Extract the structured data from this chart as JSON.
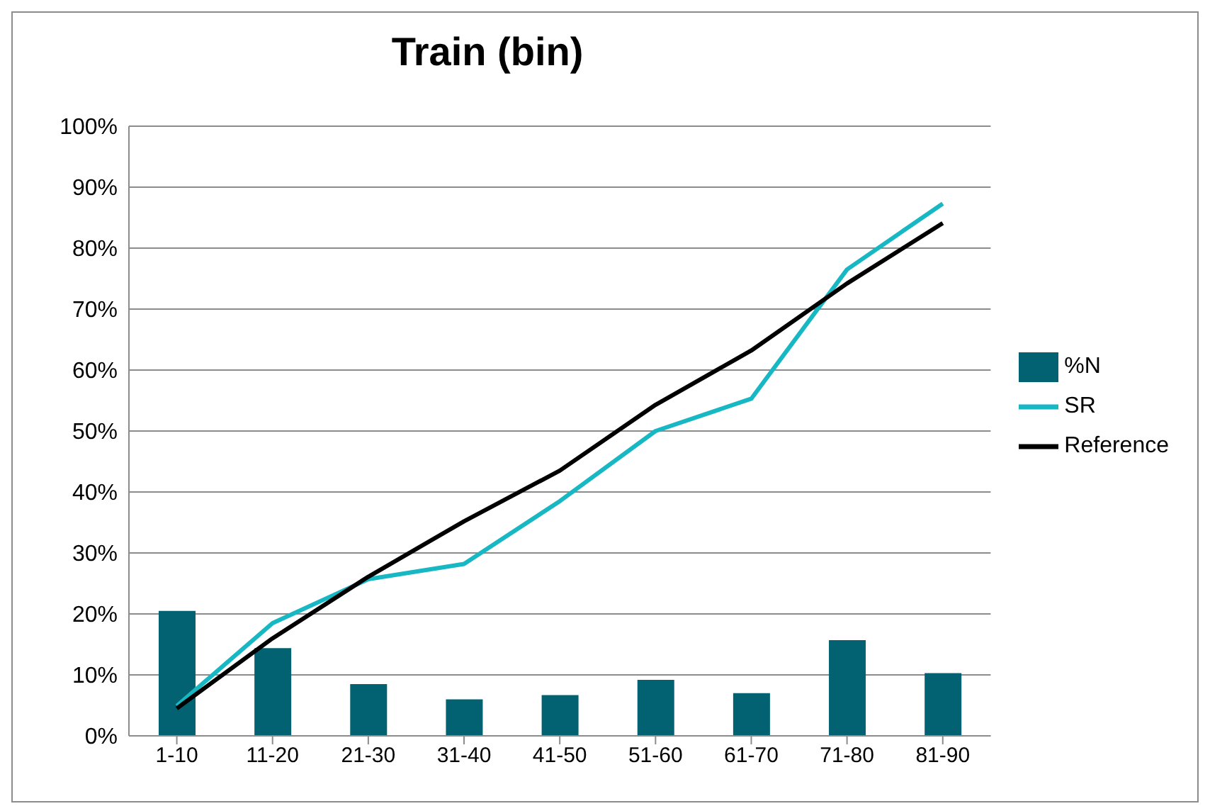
{
  "chart_data": {
    "type": "bar",
    "title": "Train (bin)",
    "categories": [
      "1-10",
      "11-20",
      "21-30",
      "31-40",
      "41-50",
      "51-60",
      "61-70",
      "71-80",
      "81-90"
    ],
    "series": [
      {
        "name": "%N",
        "color": "#036272",
        "values": [
          20.5,
          14.4,
          8.5,
          6.0,
          6.7,
          9.2,
          7.0,
          15.7,
          10.3
        ]
      },
      {
        "name": "SR",
        "type": "line",
        "color": "#17b8c4",
        "values": [
          4.9,
          18.5,
          25.7,
          28.2,
          38.5,
          50.0,
          55.3,
          76.5,
          87.3
        ]
      },
      {
        "name": "Reference",
        "type": "line",
        "color": "#000000",
        "values": [
          4.5,
          16.0,
          26.1,
          35.2,
          43.5,
          54.3,
          63.2,
          74.2,
          84.1
        ]
      }
    ],
    "ylim": [
      0,
      100
    ],
    "yticks": [
      {
        "value": 0,
        "label": "0%"
      },
      {
        "value": 10,
        "label": "10%"
      },
      {
        "value": 20,
        "label": "20%"
      },
      {
        "value": 30,
        "label": "30%"
      },
      {
        "value": 40,
        "label": "40%"
      },
      {
        "value": 50,
        "label": "50%"
      },
      {
        "value": 60,
        "label": "60%"
      },
      {
        "value": 70,
        "label": "70%"
      },
      {
        "value": 80,
        "label": "80%"
      },
      {
        "value": 90,
        "label": "90%"
      },
      {
        "value": 100,
        "label": "100%"
      }
    ],
    "grid": "y",
    "legend": "right",
    "marker": "none",
    "line_style": "solid"
  }
}
